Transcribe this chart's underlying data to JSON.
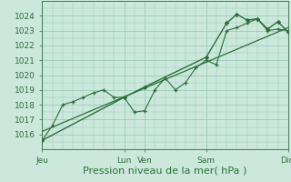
{
  "background_color": "#cce8dc",
  "grid_color": "#99ccbb",
  "line_color": "#2d6e3a",
  "marker_color": "#2d6e3a",
  "xlabel": "Pression niveau de la mer( hPa )",
  "ylim": [
    1015.4,
    1024.6
  ],
  "yticks": [
    1016,
    1017,
    1018,
    1019,
    1020,
    1021,
    1022,
    1023,
    1024
  ],
  "day_labels": [
    "Jeu",
    "Lun",
    "Ven",
    "Sam",
    "Dim"
  ],
  "day_positions": [
    0,
    96,
    120,
    192,
    288
  ],
  "series1_x": [
    0,
    12,
    24,
    36,
    48,
    60,
    72,
    84,
    96,
    108,
    120,
    132,
    144,
    156,
    168,
    180,
    192,
    204,
    216,
    228,
    240,
    252,
    264,
    276,
    288
  ],
  "series1_y": [
    1015.6,
    1016.6,
    1018.0,
    1018.2,
    1018.5,
    1018.8,
    1019.0,
    1018.5,
    1018.5,
    1017.5,
    1017.6,
    1019.0,
    1019.8,
    1019.0,
    1019.5,
    1020.5,
    1021.0,
    1020.7,
    1023.0,
    1023.2,
    1023.5,
    1023.8,
    1023.0,
    1023.1,
    1023.0
  ],
  "series2_x": [
    0,
    96,
    120,
    192,
    216,
    228,
    240,
    252,
    264,
    276,
    288
  ],
  "series2_y": [
    1015.6,
    1018.5,
    1019.2,
    1021.2,
    1023.5,
    1024.1,
    1023.7,
    1023.8,
    1023.1,
    1023.6,
    1022.9
  ],
  "trend_x": [
    0,
    288
  ],
  "trend_y": [
    1016.2,
    1023.2
  ],
  "xmin": 0,
  "xmax": 288,
  "tick_fontsize": 6.5,
  "xlabel_fontsize": 8
}
